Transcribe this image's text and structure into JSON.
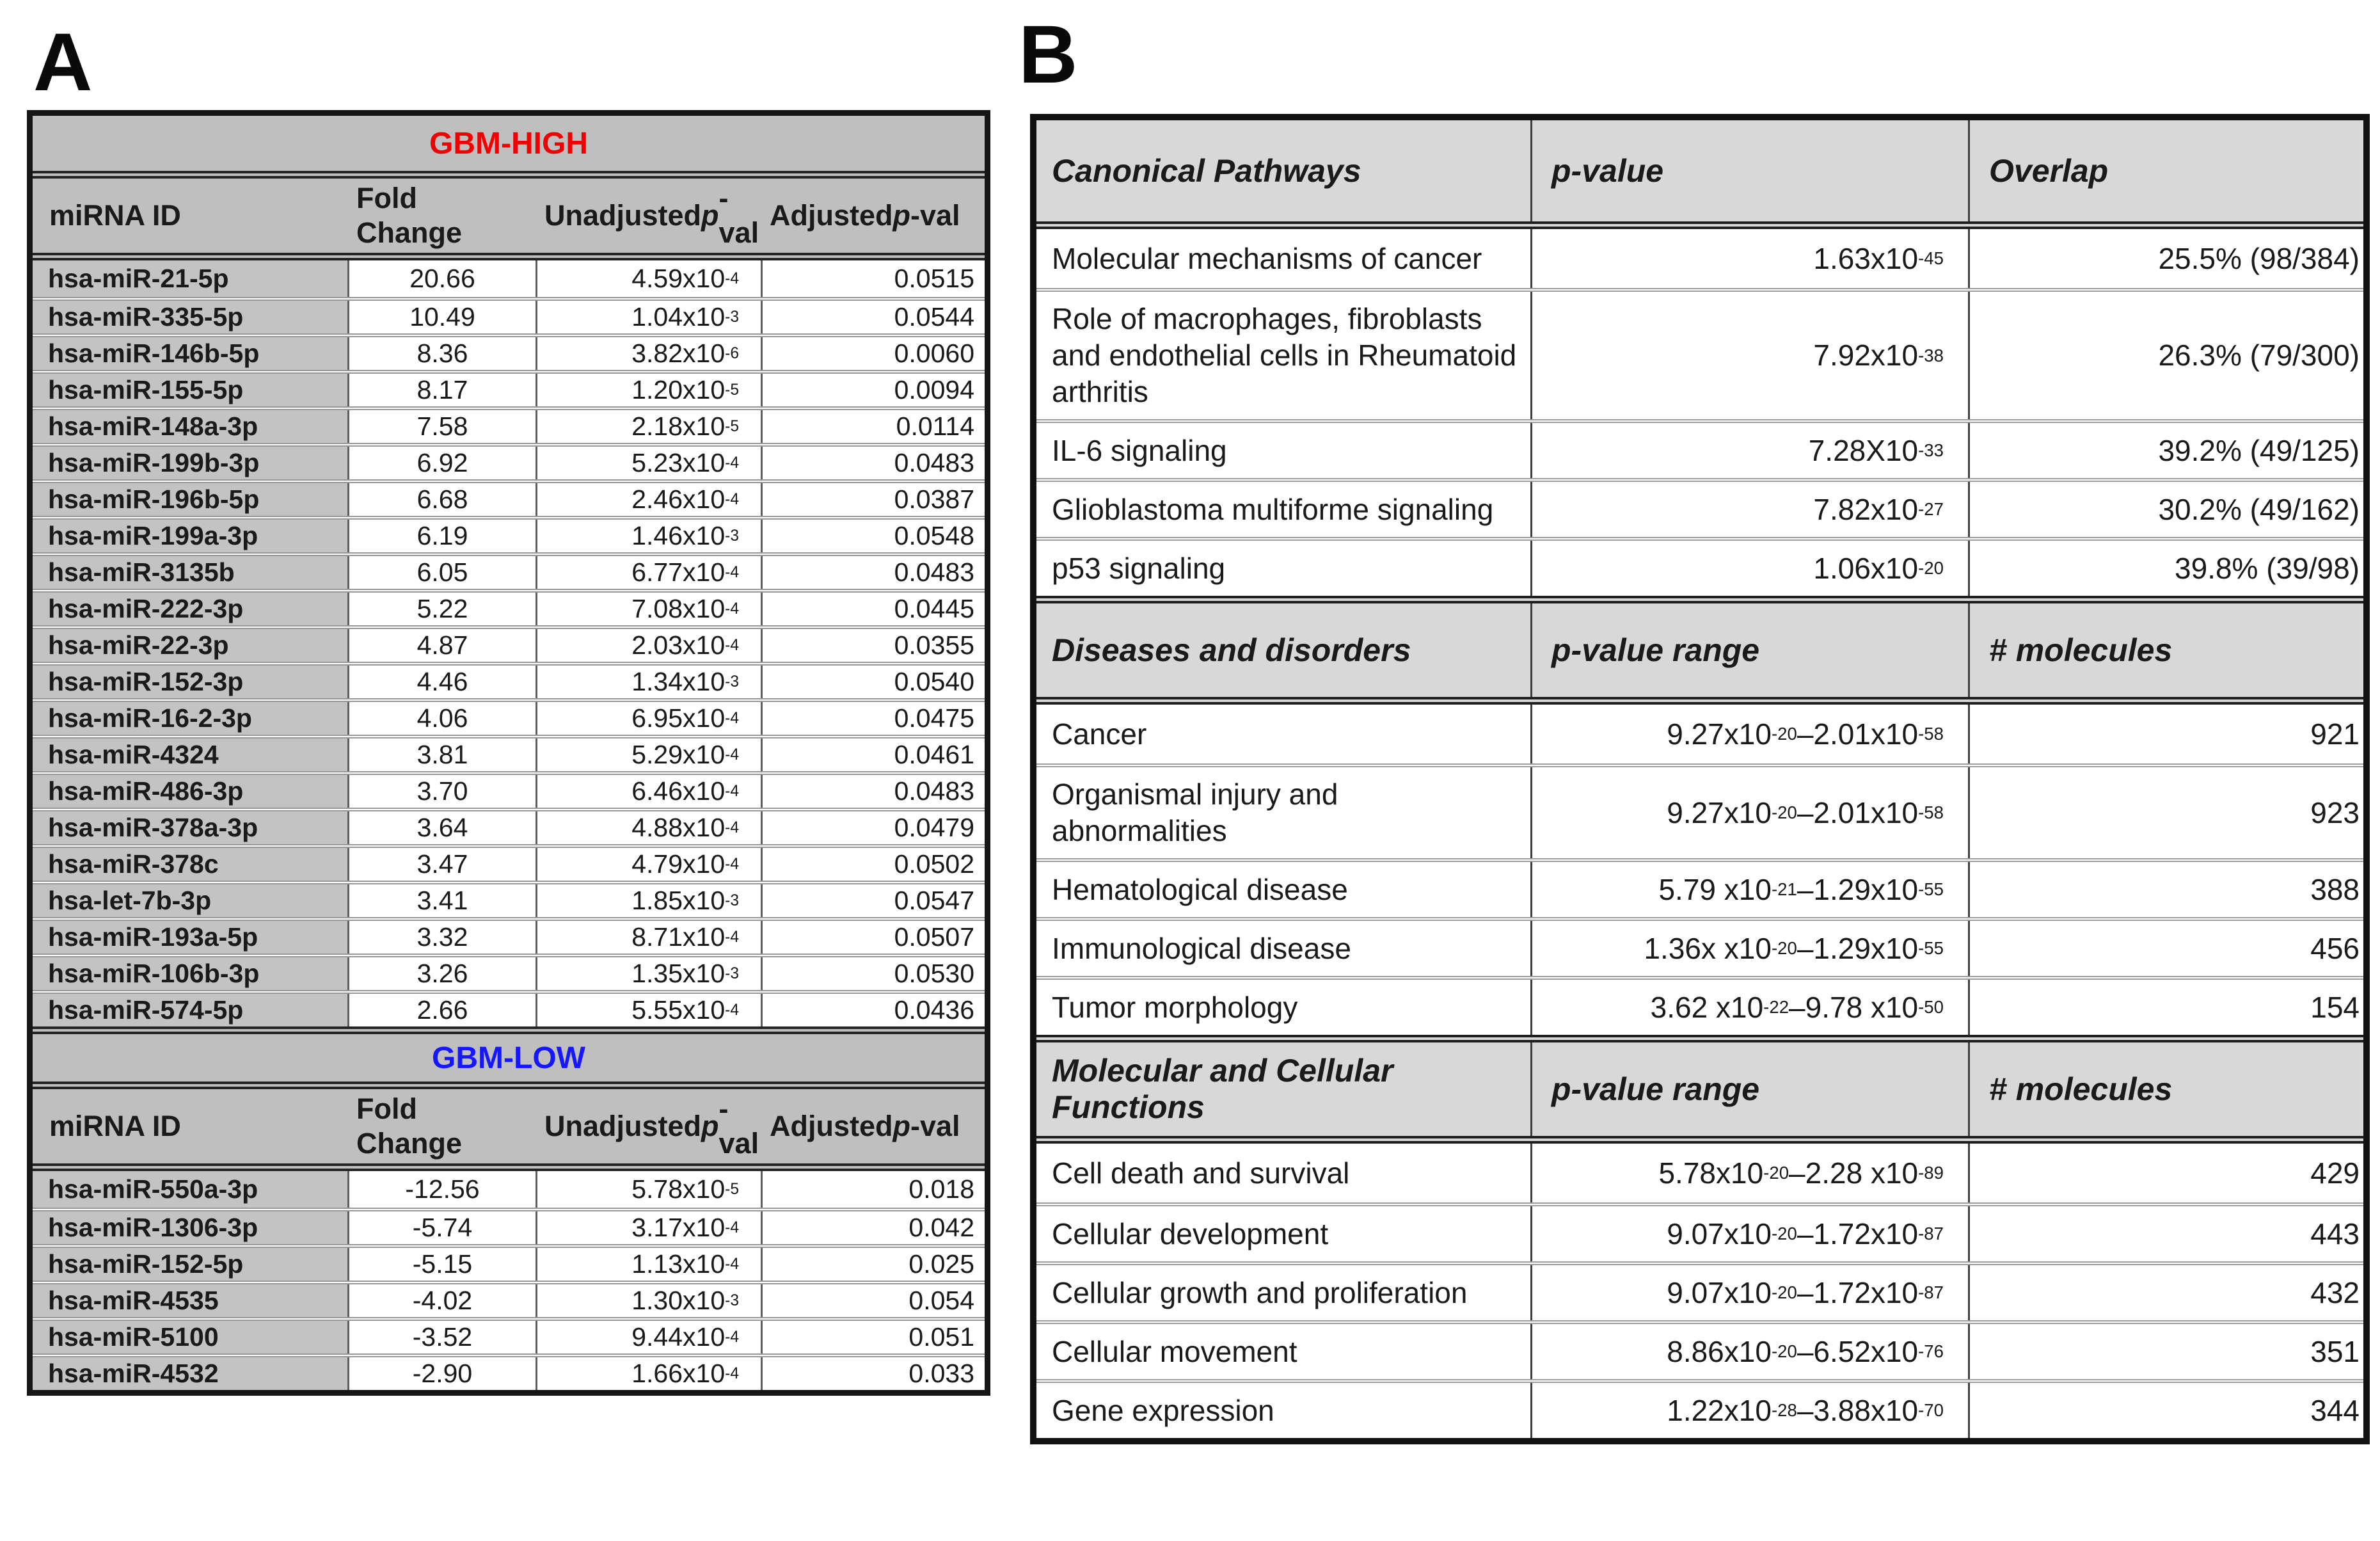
{
  "panel_a": {
    "label": "A",
    "colors": {
      "header_bg": "#bfbfbf",
      "row_label_bg": "#c3c3c3",
      "gbm_high_color": "#f20000",
      "gbm_low_color": "#1616ff"
    },
    "columns": [
      "miRNA ID",
      "Fold\nChange",
      "Unadjusted\np-val",
      "Adjusted\np-val"
    ],
    "sections": [
      {
        "title": "GBM-HIGH",
        "title_color": "#f20000",
        "rows": [
          [
            "hsa-miR-21-5p",
            "20.66",
            "4.59x10^-4",
            "0.0515"
          ],
          [
            "hsa-miR-335-5p",
            "10.49",
            "1.04x10^-3",
            "0.0544"
          ],
          [
            "hsa-miR-146b-5p",
            "8.36",
            "3.82x10^-6",
            "0.0060"
          ],
          [
            "hsa-miR-155-5p",
            "8.17",
            "1.20x10^-5",
            "0.0094"
          ],
          [
            "hsa-miR-148a-3p",
            "7.58",
            "2.18x10^-5",
            "0.0114"
          ],
          [
            "hsa-miR-199b-3p",
            "6.92",
            "5.23x10^-4",
            "0.0483"
          ],
          [
            "hsa-miR-196b-5p",
            "6.68",
            "2.46x10^-4",
            "0.0387"
          ],
          [
            "hsa-miR-199a-3p",
            "6.19",
            "1.46x10^-3",
            "0.0548"
          ],
          [
            "hsa-miR-3135b",
            "6.05",
            "6.77x10^-4",
            "0.0483"
          ],
          [
            "hsa-miR-222-3p",
            "5.22",
            "7.08x10^-4",
            "0.0445"
          ],
          [
            "hsa-miR-22-3p",
            "4.87",
            "2.03x10^-4",
            "0.0355"
          ],
          [
            "hsa-miR-152-3p",
            "4.46",
            "1.34x10^-3",
            "0.0540"
          ],
          [
            "hsa-miR-16-2-3p",
            "4.06",
            "6.95x10^-4",
            "0.0475"
          ],
          [
            "hsa-miR-4324",
            "3.81",
            "5.29x10^-4",
            "0.0461"
          ],
          [
            "hsa-miR-486-3p",
            "3.70",
            "6.46x10^-4",
            "0.0483"
          ],
          [
            "hsa-miR-378a-3p",
            "3.64",
            "4.88x10^-4",
            "0.0479"
          ],
          [
            "hsa-miR-378c",
            "3.47",
            "4.79x10^-4",
            "0.0502"
          ],
          [
            "hsa-let-7b-3p",
            "3.41",
            "1.85x10^-3",
            "0.0547"
          ],
          [
            "hsa-miR-193a-5p",
            "3.32",
            "8.71x10^-4",
            "0.0507"
          ],
          [
            "hsa-miR-106b-3p",
            "3.26",
            "1.35x10^-3",
            "0.0530"
          ],
          [
            "hsa-miR-574-5p",
            "2.66",
            "5.55x10^-4",
            "0.0436"
          ]
        ]
      },
      {
        "title": "GBM-LOW",
        "title_color": "#1616ff",
        "rows": [
          [
            "hsa-miR-550a-3p",
            "-12.56",
            "5.78x10^-5",
            "0.018"
          ],
          [
            "hsa-miR-1306-3p",
            "-5.74",
            "3.17x10^-4",
            "0.042"
          ],
          [
            "hsa-miR-152-5p",
            "-5.15",
            "1.13x10^-4",
            "0.025"
          ],
          [
            "hsa-miR-4535",
            "-4.02",
            "1.30x10^-3",
            "0.054"
          ],
          [
            "hsa-miR-5100",
            "-3.52",
            "9.44x10^-4",
            "0.051"
          ],
          [
            "hsa-miR-4532",
            "-2.90",
            "1.66x10^-4",
            "0.033"
          ]
        ]
      }
    ]
  },
  "panel_b": {
    "label": "B",
    "colors": {
      "header_bg": "#d8d8d8"
    },
    "sections": [
      {
        "headers": [
          "Canonical Pathways",
          "p-value",
          "Overlap"
        ],
        "rows": [
          [
            "Molecular mechanisms of cancer",
            "1.63x10^-45",
            "25.5% (98/384)"
          ],
          [
            "Role of macrophages, fibroblasts and endothelial cells in Rheumatoid arthritis",
            "7.92x10^-38",
            "26.3% (79/300)"
          ],
          [
            "IL-6 signaling",
            "7.28X10^-33",
            "39.2% (49/125)"
          ],
          [
            "Glioblastoma multiforme signaling",
            "7.82x10^-27",
            "30.2% (49/162)"
          ],
          [
            "p53 signaling",
            "1.06x10^-20",
            "39.8% (39/98)"
          ]
        ]
      },
      {
        "headers": [
          "Diseases and disorders",
          "p-value range",
          "# molecules"
        ],
        "rows": [
          [
            "Cancer",
            "9.27x10^-20–2.01x10^-58",
            "921"
          ],
          [
            "Organismal injury and abnormalities",
            "9.27x10^-20–2.01x10^-58",
            "923"
          ],
          [
            "Hematological disease",
            "5.79 x10^-21–1.29x10^-55",
            "388"
          ],
          [
            "Immunological disease",
            "1.36x x10^-20–1.29x10^-55",
            "456"
          ],
          [
            "Tumor morphology",
            "3.62 x10^-22–9.78 x10^-50",
            "154"
          ]
        ]
      },
      {
        "headers": [
          "Molecular and Cellular Functions",
          "p-value range",
          "# molecules"
        ],
        "rows": [
          [
            "Cell death and survival",
            "5.78x10^-20–2.28 x10^-89",
            "429"
          ],
          [
            "Cellular development",
            "9.07x10^-20–1.72x10^-87",
            "443"
          ],
          [
            "Cellular growth and proliferation",
            "9.07x10^-20–1.72x10^-87",
            "432"
          ],
          [
            "Cellular movement",
            "8.86x10^-20–6.52x10^-76",
            "351"
          ],
          [
            "Gene expression",
            "1.22x10^-28–3.88x10^-70",
            "344"
          ]
        ]
      }
    ]
  }
}
